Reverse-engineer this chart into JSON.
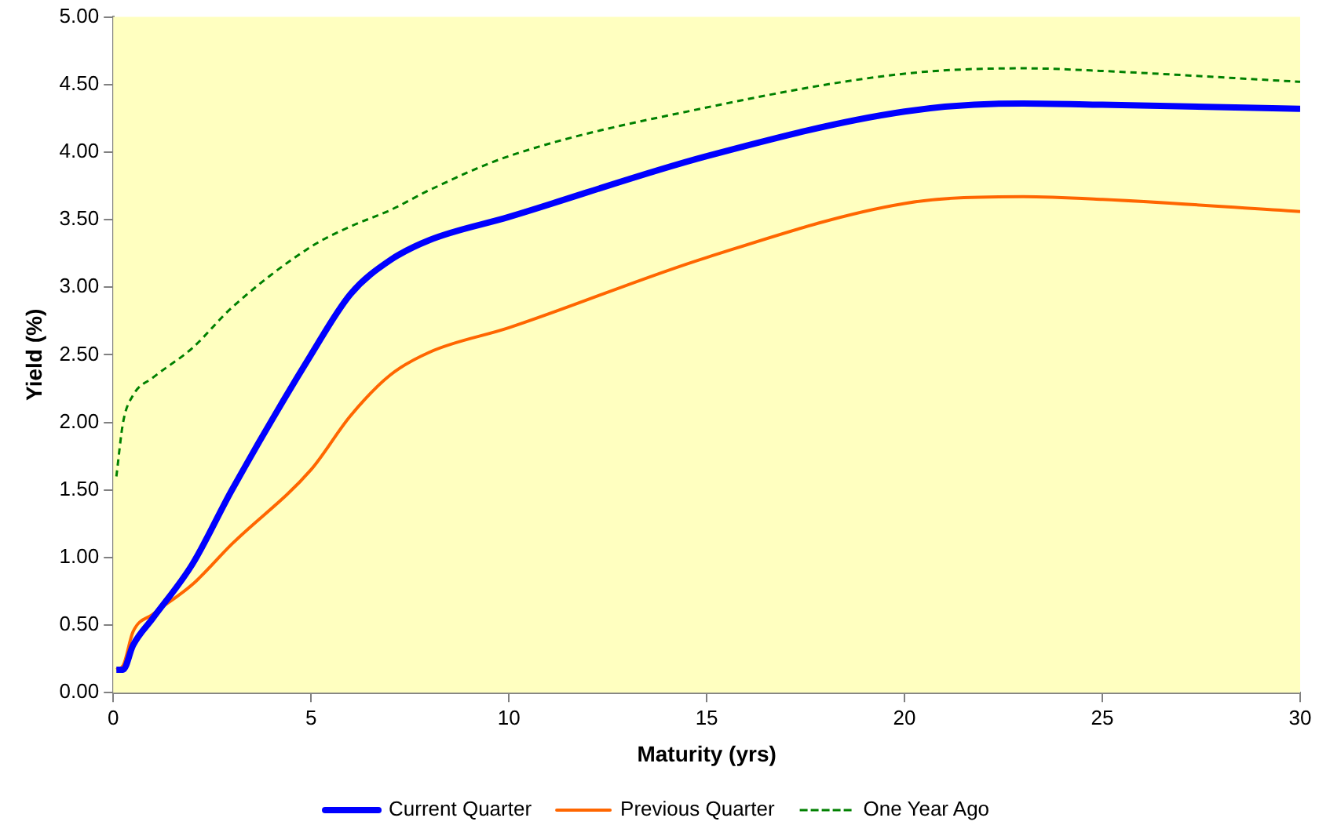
{
  "chart_data": {
    "type": "line",
    "xlabel": "Maturity (yrs)",
    "ylabel": "Yield (%)",
    "xlim": [
      0,
      30
    ],
    "xticks": [
      0,
      5,
      10,
      15,
      20,
      25,
      30
    ],
    "ylim": [
      0,
      5
    ],
    "yticks": [
      {
        "value": 0,
        "label": "0.00"
      },
      {
        "value": 0.5,
        "label": "0.50"
      },
      {
        "value": 1,
        "label": "1.00"
      },
      {
        "value": 1.5,
        "label": "1.50"
      },
      {
        "value": 2,
        "label": "2.00"
      },
      {
        "value": 2.5,
        "label": "2.50"
      },
      {
        "value": 3,
        "label": "3.00"
      },
      {
        "value": 3.5,
        "label": "3.50"
      },
      {
        "value": 4,
        "label": "4.00"
      },
      {
        "value": 4.5,
        "label": "4.50"
      },
      {
        "value": 5,
        "label": "5.00"
      }
    ],
    "x": [
      0.08,
      0.25,
      0.5,
      1,
      2,
      3,
      5,
      6,
      7,
      8,
      10,
      15,
      20,
      23,
      25,
      30
    ],
    "series": [
      {
        "name": "Current Quarter",
        "color": "#0000ff",
        "line_style": "solid",
        "values": [
          0.17,
          0.17,
          0.35,
          0.55,
          0.95,
          1.5,
          2.5,
          2.95,
          3.2,
          3.35,
          3.52,
          3.97,
          4.3,
          4.36,
          4.35,
          4.32
        ]
      },
      {
        "name": "Previous Quarter",
        "color": "#ff6600",
        "line_style": "solid",
        "values": [
          0.17,
          0.2,
          0.45,
          0.58,
          0.8,
          1.1,
          1.65,
          2.05,
          2.35,
          2.52,
          2.7,
          3.22,
          3.62,
          3.67,
          3.65,
          3.56
        ]
      },
      {
        "name": "One Year Ago",
        "color": "#008000",
        "line_style": "dashed",
        "values": [
          1.6,
          2.0,
          2.2,
          2.33,
          2.55,
          2.85,
          3.3,
          3.45,
          3.57,
          3.72,
          3.97,
          4.33,
          4.58,
          4.62,
          4.6,
          4.52
        ]
      }
    ],
    "grid": false,
    "legend": "bottom",
    "marker": "none"
  }
}
